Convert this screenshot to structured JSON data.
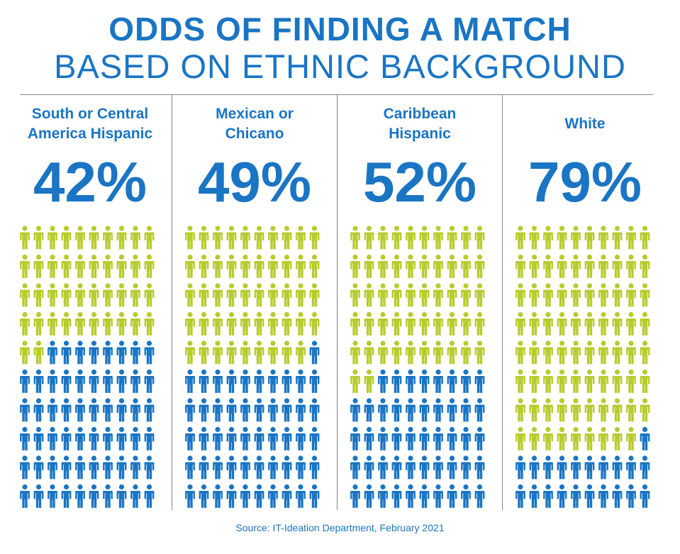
{
  "title": "ODDS OF FINDING A MATCH",
  "subtitle": "BASED ON ETHNIC BACKGROUND",
  "colors": {
    "match": "#b7cc2e",
    "no_match": "#1a75c4",
    "text": "#1a75c4",
    "rule": "#888888"
  },
  "chart_data": {
    "type": "pictogram",
    "title": "ODDS OF FINDING A MATCH BASED ON ETHNIC BACKGROUND",
    "unit": "percent",
    "icons_per_chart": 100,
    "icon_name": "person-icon",
    "categories": [
      {
        "label_lines": [
          "South or Central",
          "America Hispanic"
        ],
        "value": 42,
        "display": "42%"
      },
      {
        "label_lines": [
          "Mexican or",
          "Chicano"
        ],
        "value": 49,
        "display": "49%"
      },
      {
        "label_lines": [
          "Caribbean",
          "Hispanic"
        ],
        "value": 52,
        "display": "52%"
      },
      {
        "label_lines": [
          "White"
        ],
        "value": 79,
        "display": "79%"
      }
    ]
  },
  "source": "Source: IT-Ideation Department, February 2021"
}
